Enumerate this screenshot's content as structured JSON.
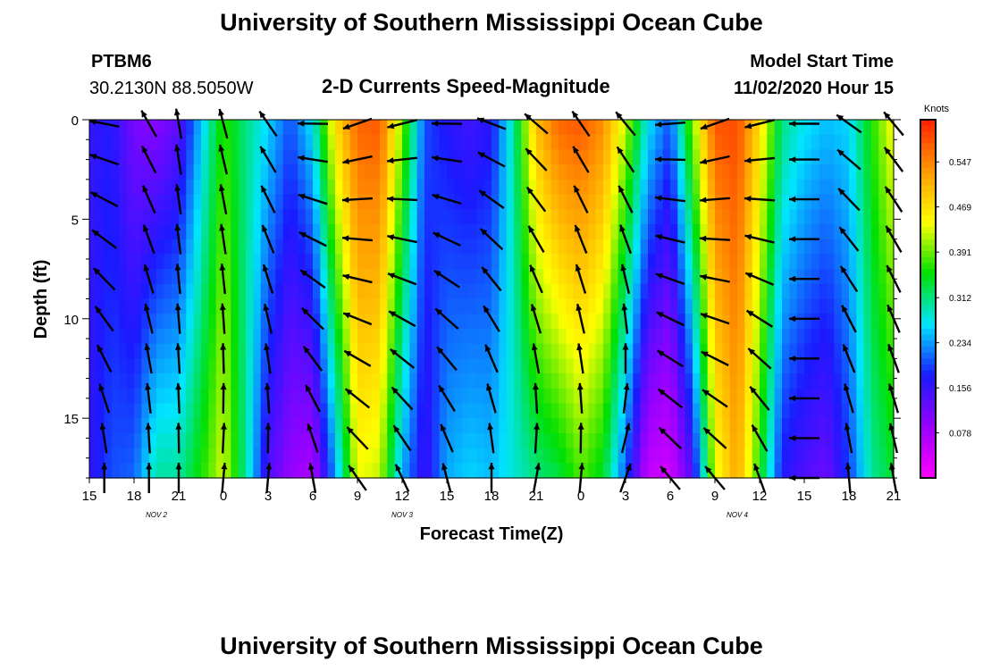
{
  "header": {
    "title": "University of Southern Mississippi Ocean Cube",
    "footer_title": "University of Southern Mississippi Ocean Cube",
    "station_id": "PTBM6",
    "station_coords": "30.2130N 88.5050W",
    "chart_title": "2-D Currents Speed-Magnitude",
    "model_label": "Model Start Time",
    "model_time": "11/02/2020 Hour 15"
  },
  "chart_data": {
    "type": "heatmap",
    "title": "2-D Currents Speed-Magnitude",
    "xlabel": "Forecast Time(Z)",
    "ylabel": "Depth (ft)",
    "x_tick_labels": [
      "15",
      "18",
      "21",
      "0",
      "3",
      "6",
      "9",
      "12",
      "15",
      "18",
      "21",
      "0",
      "3",
      "6",
      "9",
      "12",
      "15",
      "18",
      "21"
    ],
    "x_hours_from_start": [
      0,
      3,
      6,
      9,
      12,
      15,
      18,
      21,
      24,
      27,
      30,
      33,
      36,
      39,
      42,
      45,
      48,
      51,
      54
    ],
    "xlim_hours": [
      0,
      54
    ],
    "date_labels": [
      {
        "text": "NOV 2",
        "hour": 4.5
      },
      {
        "text": "NOV 3",
        "hour": 21
      },
      {
        "text": "NOV 4",
        "hour": 43.5
      }
    ],
    "y_ticks": [
      0,
      5,
      10,
      15
    ],
    "ylim_ft": [
      0,
      18
    ],
    "y_inverted": true,
    "colorbar": {
      "unit": "Knots",
      "ticks": [
        0.078,
        0.156,
        0.234,
        0.312,
        0.391,
        0.469,
        0.547
      ],
      "range": [
        0.0,
        0.62
      ],
      "colors": [
        "#ff00ff",
        "#9900ff",
        "#1a1aff",
        "#00e5ff",
        "#00e000",
        "#ffff00",
        "#ff9900",
        "#ff2000"
      ]
    },
    "speed_profile": [
      {
        "h": 0.0,
        "top": 0.16,
        "bot": 0.16
      },
      {
        "h": 1.5,
        "top": 0.17,
        "bot": 0.2
      },
      {
        "h": 3.0,
        "top": 0.11,
        "bot": 0.21
      },
      {
        "h": 4.5,
        "top": 0.1,
        "bot": 0.3
      },
      {
        "h": 6.0,
        "top": 0.13,
        "bot": 0.3
      },
      {
        "h": 7.5,
        "top": 0.25,
        "bot": 0.36
      },
      {
        "h": 9.0,
        "top": 0.37,
        "bot": 0.43
      },
      {
        "h": 10.5,
        "top": 0.31,
        "bot": 0.3
      },
      {
        "h": 12.0,
        "top": 0.26,
        "bot": 0.14
      },
      {
        "h": 13.5,
        "top": 0.2,
        "bot": 0.09
      },
      {
        "h": 15.0,
        "top": 0.27,
        "bot": 0.07
      },
      {
        "h": 16.5,
        "top": 0.47,
        "bot": 0.23
      },
      {
        "h": 18.0,
        "top": 0.57,
        "bot": 0.44
      },
      {
        "h": 19.5,
        "top": 0.58,
        "bot": 0.42
      },
      {
        "h": 21.0,
        "top": 0.4,
        "bot": 0.24
      },
      {
        "h": 22.5,
        "top": 0.2,
        "bot": 0.15
      },
      {
        "h": 24.0,
        "top": 0.17,
        "bot": 0.24
      },
      {
        "h": 25.5,
        "top": 0.15,
        "bot": 0.26
      },
      {
        "h": 27.0,
        "top": 0.17,
        "bot": 0.25
      },
      {
        "h": 28.5,
        "top": 0.3,
        "bot": 0.28
      },
      {
        "h": 30.0,
        "top": 0.5,
        "bot": 0.31
      },
      {
        "h": 31.5,
        "top": 0.57,
        "bot": 0.33
      },
      {
        "h": 33.0,
        "top": 0.58,
        "bot": 0.38
      },
      {
        "h": 34.5,
        "top": 0.54,
        "bot": 0.34
      },
      {
        "h": 36.0,
        "top": 0.42,
        "bot": 0.2
      },
      {
        "h": 37.5,
        "top": 0.27,
        "bot": 0.05
      },
      {
        "h": 39.0,
        "top": 0.2,
        "bot": 0.04
      },
      {
        "h": 40.5,
        "top": 0.4,
        "bot": 0.14
      },
      {
        "h": 42.0,
        "top": 0.58,
        "bot": 0.43
      },
      {
        "h": 43.5,
        "top": 0.59,
        "bot": 0.52
      },
      {
        "h": 45.0,
        "top": 0.47,
        "bot": 0.36
      },
      {
        "h": 46.5,
        "top": 0.31,
        "bot": 0.17
      },
      {
        "h": 48.0,
        "top": 0.27,
        "bot": 0.14
      },
      {
        "h": 49.5,
        "top": 0.25,
        "bot": 0.12
      },
      {
        "h": 51.0,
        "top": 0.26,
        "bot": 0.19
      },
      {
        "h": 52.5,
        "top": 0.36,
        "bot": 0.3
      },
      {
        "h": 54.0,
        "top": 0.45,
        "bot": 0.34
      }
    ],
    "vector_columns": [
      {
        "h": 1,
        "top_dir": -80,
        "bot_dir": 0
      },
      {
        "h": 4,
        "top_dir": -30,
        "bot_dir": 0
      },
      {
        "h": 6,
        "top_dir": -10,
        "bot_dir": 0
      },
      {
        "h": 9,
        "top_dir": -15,
        "bot_dir": 5
      },
      {
        "h": 12,
        "top_dir": -35,
        "bot_dir": 5
      },
      {
        "h": 15,
        "top_dir": -90,
        "bot_dir": -10
      },
      {
        "h": 18,
        "top_dir": -110,
        "bot_dir": -35
      },
      {
        "h": 21,
        "top_dir": -105,
        "bot_dir": -25
      },
      {
        "h": 24,
        "top_dir": -90,
        "bot_dir": -15
      },
      {
        "h": 27,
        "top_dir": -70,
        "bot_dir": 0
      },
      {
        "h": 30,
        "top_dir": -50,
        "bot_dir": 10
      },
      {
        "h": 33,
        "top_dir": -35,
        "bot_dir": 5
      },
      {
        "h": 36,
        "top_dir": -40,
        "bot_dir": 20
      },
      {
        "h": 39,
        "top_dir": -95,
        "bot_dir": -40
      },
      {
        "h": 42,
        "top_dir": -110,
        "bot_dir": -40
      },
      {
        "h": 45,
        "top_dir": -105,
        "bot_dir": -20
      },
      {
        "h": 48,
        "top_dir": -90,
        "bot_dir": -90
      },
      {
        "h": 51,
        "top_dir": -55,
        "bot_dir": -5
      },
      {
        "h": 54,
        "top_dir": -40,
        "bot_dir": -10
      }
    ],
    "vector_depths": [
      0.2,
      2,
      4,
      6,
      8,
      10,
      12,
      14,
      16,
      18
    ],
    "arrow_color": "#000000"
  }
}
